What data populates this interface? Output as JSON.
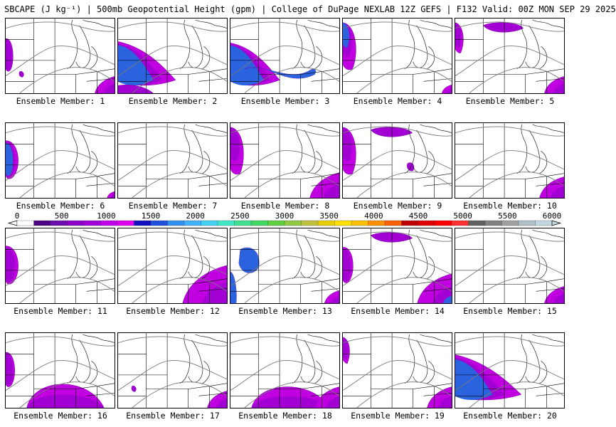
{
  "header": {
    "title": "SBCAPE (J kg⁻¹) | 500mb Geopotential Height (gpm) | College of DuPage NEXLAB 12Z GEFS | F132 Valid: 00Z MON SEP 29 2025"
  },
  "label_prefix": "Ensemble Member: ",
  "members": [
    {
      "label": "Ensemble Member: 1",
      "blobs": [
        [
          "W",
          0.15
        ],
        [
          "SE",
          0.4
        ],
        [
          "wc",
          0.1
        ]
      ]
    },
    {
      "label": "Ensemble Member: 2",
      "blobs": [
        [
          "WL",
          0.7,
          true
        ],
        [
          "SWL",
          0.3
        ]
      ]
    },
    {
      "label": "Ensemble Member: 3",
      "blobs": [
        [
          "WL",
          0.5,
          true
        ],
        [
          "BAND",
          0.8,
          true
        ]
      ]
    },
    {
      "label": "Ensemble Member: 4",
      "blobs": [
        [
          "NW",
          0.7,
          true
        ],
        [
          "SE",
          0.2
        ]
      ]
    },
    {
      "label": "Ensemble Member: 5",
      "blobs": [
        [
          "NW",
          0.3
        ],
        [
          "NC",
          0.2
        ],
        [
          "SE",
          0.4
        ]
      ]
    },
    {
      "label": "Ensemble Member: 6",
      "blobs": [
        [
          "W",
          0.6,
          true
        ],
        [
          "SE",
          0.15
        ]
      ]
    },
    {
      "label": "Ensemble Member: 7",
      "blobs": []
    },
    {
      "label": "Ensemble Member: 8",
      "blobs": [
        [
          "NW",
          0.7
        ],
        [
          "SE",
          0.6
        ]
      ]
    },
    {
      "label": "Ensemble Member: 9",
      "blobs": [
        [
          "NW",
          0.7
        ],
        [
          "NC",
          0.4
        ],
        [
          "C",
          0.2
        ]
      ]
    },
    {
      "label": "Ensemble Member: 10",
      "blobs": [
        [
          "SE",
          0.5
        ]
      ]
    },
    {
      "label": "Ensemble Member: 11",
      "blobs": [
        [
          "W",
          0.6
        ]
      ]
    },
    {
      "label": "Ensemble Member: 12",
      "blobs": [
        [
          "SE",
          0.9
        ]
      ]
    },
    {
      "label": "Ensemble Member: 13",
      "blobs": [
        [
          "WC",
          0.5,
          true
        ],
        [
          "SW",
          0.4,
          true
        ],
        [
          "SE",
          0.3
        ]
      ]
    },
    {
      "label": "Ensemble Member: 14",
      "blobs": [
        [
          "NC",
          0.4
        ],
        [
          "W",
          0.4
        ],
        [
          "SE",
          0.7,
          true
        ]
      ]
    },
    {
      "label": "Ensemble Member: 15",
      "blobs": [
        [
          "SE",
          0.4
        ]
      ]
    },
    {
      "label": "Ensemble Member: 16",
      "blobs": [
        [
          "W",
          0.3
        ],
        [
          "S",
          0.9
        ]
      ]
    },
    {
      "label": "Ensemble Member: 17",
      "blobs": [
        [
          "SE",
          0.4
        ],
        [
          "wc",
          0.1
        ]
      ]
    },
    {
      "label": "Ensemble Member: 18",
      "blobs": [
        [
          "S",
          0.8
        ],
        [
          "SE",
          0.5
        ]
      ]
    },
    {
      "label": "Ensemble Member: 19",
      "blobs": [
        [
          "SE",
          0.5
        ],
        [
          "NW",
          0.2
        ]
      ]
    },
    {
      "label": "Ensemble Member: 20",
      "blobs": [
        [
          "WL",
          0.9,
          true
        ]
      ]
    }
  ],
  "colorbar": {
    "ticks": [
      0,
      500,
      1000,
      1500,
      2000,
      2500,
      3000,
      3500,
      4000,
      4500,
      5000,
      5500,
      6000
    ],
    "tick_labels": [
      "0",
      "500",
      "1000",
      "1500",
      "2000",
      "2500",
      "3000",
      "3500",
      "4000",
      "4500",
      "5000",
      "5500",
      "6000"
    ],
    "colors": [
      "#ffffff",
      "#4b0082",
      "#6a0dad",
      "#8a00c8",
      "#a000dc",
      "#c000e8",
      "#e000f0",
      "#1010c0",
      "#2050e0",
      "#3090f0",
      "#40b0ff",
      "#40d0f0",
      "#40e8c8",
      "#40e090",
      "#40d860",
      "#60d040",
      "#90c840",
      "#c0c040",
      "#e8d000",
      "#ffe000",
      "#ffc000",
      "#ff9000",
      "#ff6000",
      "#c00000",
      "#e00000",
      "#ff0000",
      "#ff3030",
      "#606060",
      "#808080",
      "#a0a0a0",
      "#b0c0c8",
      "#c0d8e0"
    ]
  }
}
